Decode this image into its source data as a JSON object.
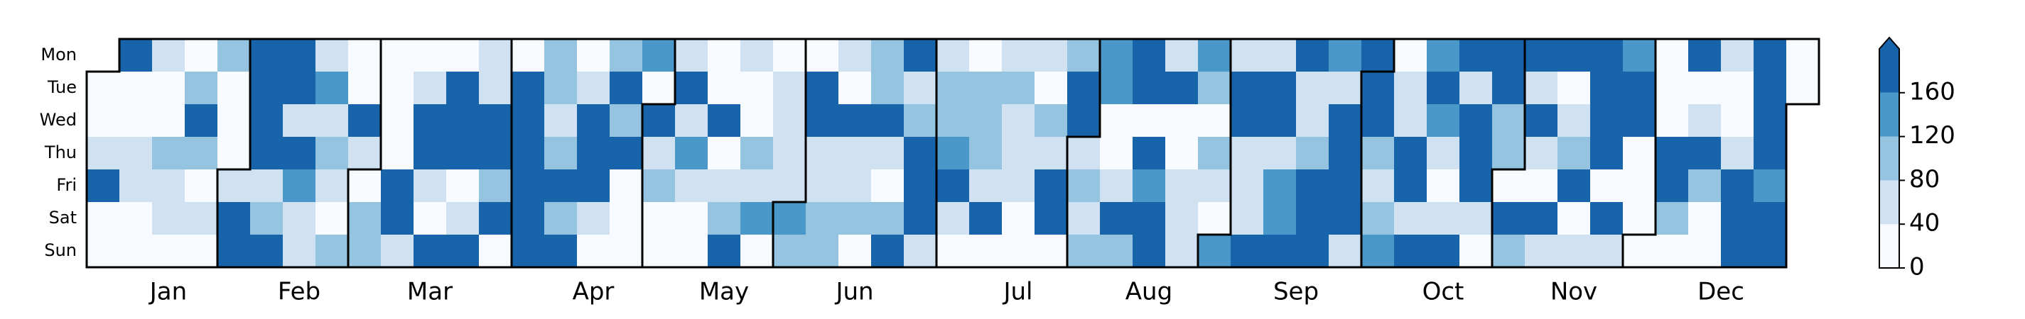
{
  "chart_data": {
    "type": "calendar-heatmap",
    "rows": [
      "Mon",
      "Tue",
      "Wed",
      "Thu",
      "Fri",
      "Sat",
      "Sun"
    ],
    "months": [
      {
        "name": "Jan",
        "values": [
          [
            null,
            20,
            20,
            60,
            180,
            20,
            20
          ],
          [
            180,
            20,
            20,
            60,
            60,
            20,
            20
          ],
          [
            60,
            20,
            20,
            100,
            60,
            60,
            20
          ],
          [
            20,
            100,
            180,
            100,
            20,
            60,
            20
          ],
          [
            100,
            20,
            20,
            20,
            null,
            null,
            null
          ]
        ]
      },
      {
        "name": "Feb",
        "values": [
          [
            null,
            null,
            null,
            null,
            60,
            180,
            180
          ],
          [
            180,
            180,
            180,
            180,
            60,
            100,
            180
          ],
          [
            180,
            180,
            60,
            180,
            140,
            60,
            60
          ],
          [
            60,
            140,
            60,
            100,
            60,
            20,
            100
          ],
          [
            20,
            20,
            180,
            60,
            null,
            null,
            null
          ]
        ]
      },
      {
        "name": "Mar",
        "values": [
          [
            null,
            null,
            null,
            null,
            20,
            100,
            100
          ],
          [
            20,
            20,
            20,
            20,
            180,
            180,
            60
          ],
          [
            20,
            60,
            180,
            180,
            60,
            20,
            180
          ],
          [
            20,
            180,
            180,
            180,
            20,
            60,
            180
          ],
          [
            60,
            60,
            180,
            180,
            100,
            180,
            20
          ]
        ]
      },
      {
        "name": "Apr",
        "values": [
          [
            20,
            180,
            180,
            180,
            180,
            180,
            180
          ],
          [
            100,
            100,
            60,
            100,
            180,
            100,
            180
          ],
          [
            20,
            60,
            180,
            180,
            180,
            60,
            20
          ],
          [
            100,
            180,
            100,
            180,
            20,
            20,
            20
          ],
          [
            140,
            20,
            null,
            null,
            null,
            null,
            null
          ]
        ]
      },
      {
        "name": "May",
        "values": [
          [
            null,
            null,
            180,
            60,
            100,
            20,
            20
          ],
          [
            60,
            180,
            60,
            140,
            60,
            20,
            20
          ],
          [
            20,
            20,
            180,
            20,
            60,
            100,
            180
          ],
          [
            60,
            20,
            20,
            100,
            60,
            140,
            20
          ],
          [
            20,
            60,
            60,
            60,
            60,
            null,
            null
          ]
        ]
      },
      {
        "name": "Jun",
        "values": [
          [
            null,
            null,
            null,
            null,
            null,
            140,
            100
          ],
          [
            20,
            180,
            180,
            60,
            60,
            100,
            100
          ],
          [
            60,
            20,
            180,
            60,
            60,
            100,
            20
          ],
          [
            100,
            100,
            180,
            60,
            20,
            100,
            180
          ],
          [
            180,
            60,
            100,
            180,
            180,
            180,
            60
          ]
        ]
      },
      {
        "name": "Jul",
        "values": [
          [
            60,
            100,
            100,
            140,
            180,
            60,
            20
          ],
          [
            20,
            100,
            100,
            100,
            60,
            180,
            20
          ],
          [
            60,
            100,
            60,
            60,
            60,
            20,
            20
          ],
          [
            60,
            20,
            100,
            60,
            180,
            180,
            20
          ],
          [
            100,
            180,
            180,
            null,
            null,
            null,
            null
          ]
        ]
      },
      {
        "name": "Aug",
        "values": [
          [
            null,
            null,
            null,
            60,
            100,
            60,
            100
          ],
          [
            140,
            140,
            20,
            20,
            60,
            180,
            100
          ],
          [
            180,
            180,
            20,
            180,
            140,
            180,
            180
          ],
          [
            60,
            180,
            20,
            20,
            60,
            60,
            60
          ],
          [
            140,
            100,
            20,
            100,
            60,
            20,
            null
          ]
        ]
      },
      {
        "name": "Sep",
        "values": [
          [
            null,
            null,
            null,
            null,
            null,
            null,
            140
          ],
          [
            60,
            180,
            180,
            60,
            60,
            60,
            180
          ],
          [
            60,
            180,
            180,
            60,
            140,
            140,
            180
          ],
          [
            180,
            60,
            60,
            100,
            180,
            180,
            180
          ],
          [
            140,
            60,
            180,
            180,
            180,
            180,
            60
          ],
          [
            180,
            null,
            null,
            null,
            null,
            null,
            null
          ]
        ]
      },
      {
        "name": "Oct",
        "values": [
          [
            null,
            180,
            180,
            100,
            60,
            100,
            140
          ],
          [
            20,
            60,
            60,
            180,
            180,
            60,
            180
          ],
          [
            140,
            180,
            140,
            60,
            20,
            60,
            180
          ],
          [
            180,
            60,
            180,
            180,
            180,
            60,
            20
          ],
          [
            180,
            180,
            100,
            100,
            null,
            null,
            null
          ]
        ]
      },
      {
        "name": "Nov",
        "values": [
          [
            null,
            null,
            null,
            null,
            20,
            180,
            100
          ],
          [
            180,
            60,
            180,
            60,
            20,
            180,
            60
          ],
          [
            180,
            20,
            60,
            100,
            180,
            20,
            60
          ],
          [
            180,
            180,
            180,
            180,
            20,
            180,
            60
          ],
          [
            140,
            180,
            180,
            20,
            20,
            20,
            null
          ]
        ]
      },
      {
        "name": "Dec",
        "values": [
          [
            null,
            null,
            null,
            null,
            null,
            null,
            20
          ],
          [
            20,
            20,
            20,
            180,
            180,
            100,
            20
          ],
          [
            180,
            20,
            60,
            180,
            100,
            20,
            20
          ],
          [
            60,
            20,
            20,
            60,
            180,
            180,
            180
          ],
          [
            180,
            180,
            180,
            180,
            140,
            180,
            180
          ],
          [
            20,
            20,
            null,
            null,
            null,
            null,
            null
          ]
        ]
      }
    ],
    "colorbar": {
      "lim": [
        0,
        200
      ],
      "ticks": [
        0,
        40,
        80,
        120,
        160
      ],
      "colors": [
        "#f7fbff",
        "#d0e1f2",
        "#94c4df",
        "#4a98c9",
        "#1764ab"
      ],
      "extend": "max"
    }
  }
}
